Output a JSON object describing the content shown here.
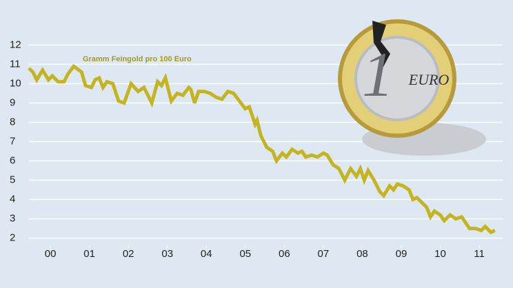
{
  "chart_data": {
    "type": "line",
    "annotation": "Gramm Feingold pro 100 Euro",
    "coin_label": "EURO",
    "coin_denomination": 1,
    "x": [
      -0.05,
      0.05,
      0.15,
      0.3,
      0.45,
      0.55,
      0.7,
      0.85,
      0.95,
      1.1,
      1.3,
      1.4,
      1.55,
      1.65,
      1.75,
      1.85,
      1.95,
      2.1,
      2.25,
      2.39,
      2.57,
      2.75,
      2.9,
      3.0,
      3.1,
      3.25,
      3.35,
      3.45,
      3.6,
      3.75,
      3.9,
      4.05,
      4.1,
      4.2,
      4.3,
      4.45,
      4.6,
      4.75,
      4.9,
      5.05,
      5.2,
      5.35,
      5.5,
      5.6,
      5.75,
      5.8,
      5.9,
      6.05,
      6.2,
      6.3,
      6.45,
      6.55,
      6.7,
      6.85,
      6.95,
      7.05,
      7.2,
      7.35,
      7.5,
      7.6,
      7.75,
      7.9,
      8.05,
      8.2,
      8.35,
      8.45,
      8.55,
      8.65,
      8.8,
      8.95,
      9.05,
      9.2,
      9.3,
      9.4,
      9.55,
      9.7,
      9.8,
      9.9,
      10.05,
      10.15,
      10.25,
      10.35,
      10.5,
      10.6,
      10.75,
      10.9,
      11.05,
      11.25,
      11.4,
      11.55,
      11.65,
      11.8,
      11.9
    ],
    "series": [
      {
        "name": "Gramm Feingold pro 100 Euro",
        "color": "#c4b520",
        "values": [
          10.8,
          10.6,
          10.2,
          10.7,
          10.2,
          10.4,
          10.1,
          10.1,
          10.5,
          10.9,
          10.6,
          9.9,
          9.8,
          10.2,
          10.3,
          9.8,
          10.1,
          10.0,
          9.1,
          9.0,
          10.0,
          9.6,
          9.8,
          9.4,
          9.0,
          10.1,
          9.9,
          10.3,
          9.1,
          9.5,
          9.4,
          9.8,
          9.7,
          9.0,
          9.6,
          9.6,
          9.5,
          9.3,
          9.2,
          9.6,
          9.5,
          9.1,
          8.7,
          8.8,
          7.9,
          8.1,
          7.3,
          6.7,
          6.5,
          6.0,
          6.4,
          6.2,
          6.6,
          6.4,
          6.5,
          6.2,
          6.3,
          6.2,
          6.4,
          6.3,
          5.8,
          5.6,
          5.0,
          5.6,
          5.2,
          5.6,
          5.0,
          5.5,
          5.0,
          4.4,
          4.2,
          4.7,
          4.5,
          4.8,
          4.7,
          4.5,
          4.0,
          4.1,
          3.8,
          3.6,
          3.1,
          3.4,
          3.2,
          2.9,
          3.2,
          3.0,
          3.1,
          2.5,
          2.5,
          2.4,
          2.6,
          2.3,
          2.4
        ]
      }
    ],
    "xlim": [
      -0.05,
      12.1
    ],
    "xticks": [
      {
        "value": 0.5,
        "label": "00"
      },
      {
        "value": 1.5,
        "label": "01"
      },
      {
        "value": 2.5,
        "label": "02"
      },
      {
        "value": 3.5,
        "label": "03"
      },
      {
        "value": 4.5,
        "label": "04"
      },
      {
        "value": 5.5,
        "label": "05"
      },
      {
        "value": 6.5,
        "label": "06"
      },
      {
        "value": 7.5,
        "label": "07"
      },
      {
        "value": 8.5,
        "label": "08"
      },
      {
        "value": 9.5,
        "label": "09"
      },
      {
        "value": 10.5,
        "label": "10"
      },
      {
        "value": 11.5,
        "label": "11"
      }
    ],
    "ylim": [
      1.7,
      12.3
    ],
    "yticks": [
      2,
      3,
      4,
      5,
      6,
      7,
      8,
      9,
      10,
      11,
      12
    ],
    "grid": true
  }
}
